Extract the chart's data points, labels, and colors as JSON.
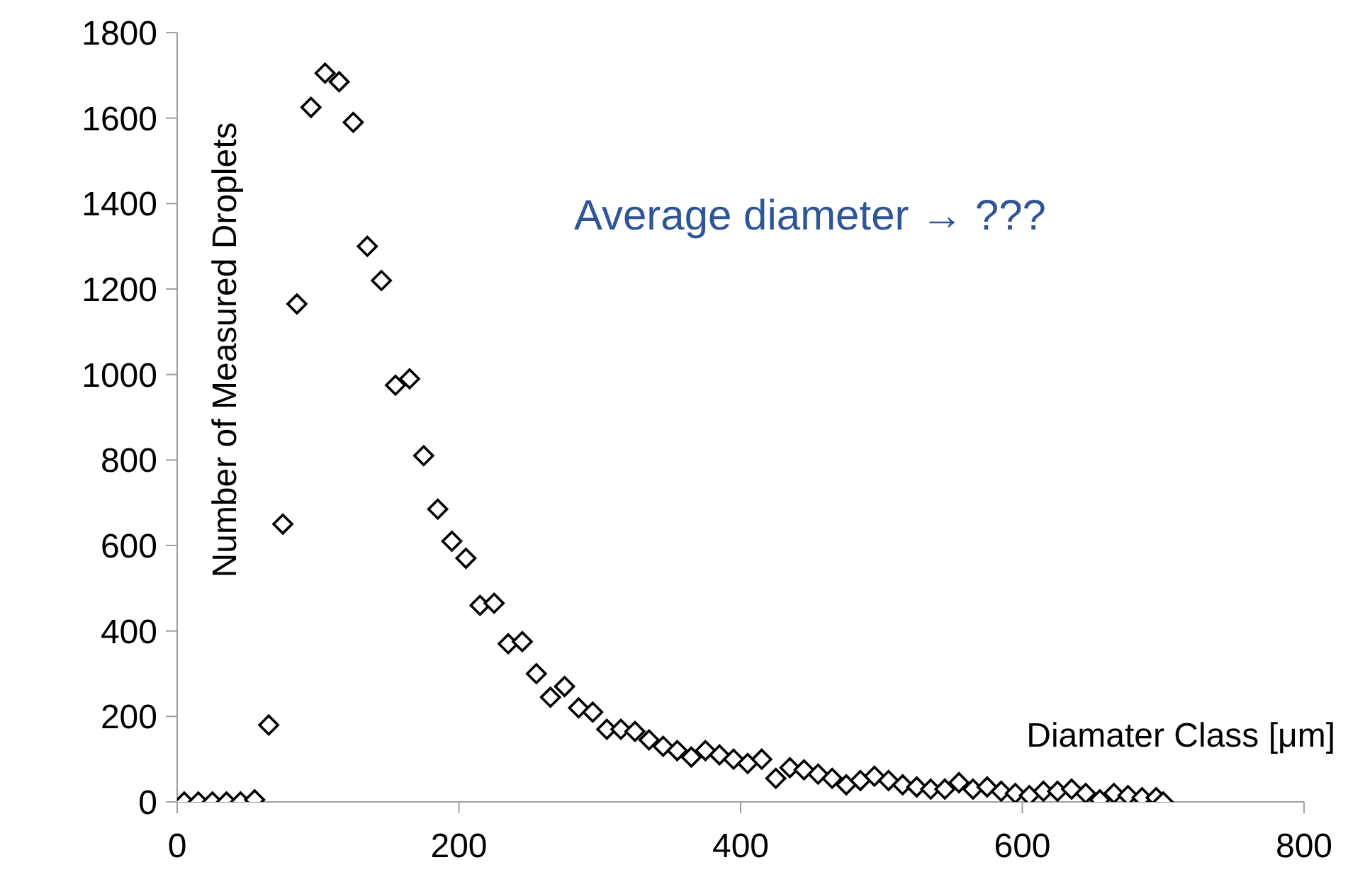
{
  "chart_data": {
    "type": "scatter",
    "xlabel": "Diamater Class [μm]",
    "ylabel": "Number of Measured Droplets",
    "annotations": [
      "Average diameter → ???"
    ],
    "x": [
      5,
      15,
      25,
      35,
      45,
      55,
      65,
      75,
      85,
      95,
      105,
      115,
      125,
      135,
      145,
      155,
      165,
      175,
      185,
      195,
      205,
      215,
      225,
      235,
      245,
      255,
      265,
      275,
      285,
      295,
      305,
      315,
      325,
      335,
      345,
      355,
      365,
      375,
      385,
      395,
      405,
      415,
      425,
      435,
      445,
      455,
      465,
      475,
      485,
      495,
      505,
      515,
      525,
      535,
      545,
      555,
      565,
      575,
      585,
      595,
      605,
      615,
      625,
      635,
      645,
      655,
      665,
      675,
      685,
      695,
      700
    ],
    "series": [
      {
        "color": "#000000",
        "values": [
          0,
          0,
          0,
          0,
          0,
          5,
          180,
          650,
          1165,
          1625,
          1705,
          1685,
          1590,
          1300,
          1220,
          975,
          990,
          810,
          685,
          610,
          570,
          460,
          465,
          370,
          375,
          300,
          245,
          270,
          220,
          210,
          170,
          170,
          165,
          145,
          130,
          120,
          105,
          120,
          110,
          100,
          90,
          100,
          55,
          80,
          75,
          65,
          55,
          40,
          50,
          60,
          50,
          40,
          35,
          30,
          30,
          45,
          30,
          35,
          25,
          20,
          15,
          25,
          25,
          30,
          20,
          5,
          20,
          15,
          10,
          10,
          0
        ]
      }
    ],
    "xlim": [
      0,
      800
    ],
    "xticks": [
      0,
      200,
      400,
      600,
      800
    ],
    "ylim": [
      0,
      1800
    ],
    "yticks": [
      0,
      200,
      400,
      600,
      800,
      1000,
      1200,
      1400,
      1600,
      1800
    ],
    "marker": "diamond",
    "grid": false
  }
}
